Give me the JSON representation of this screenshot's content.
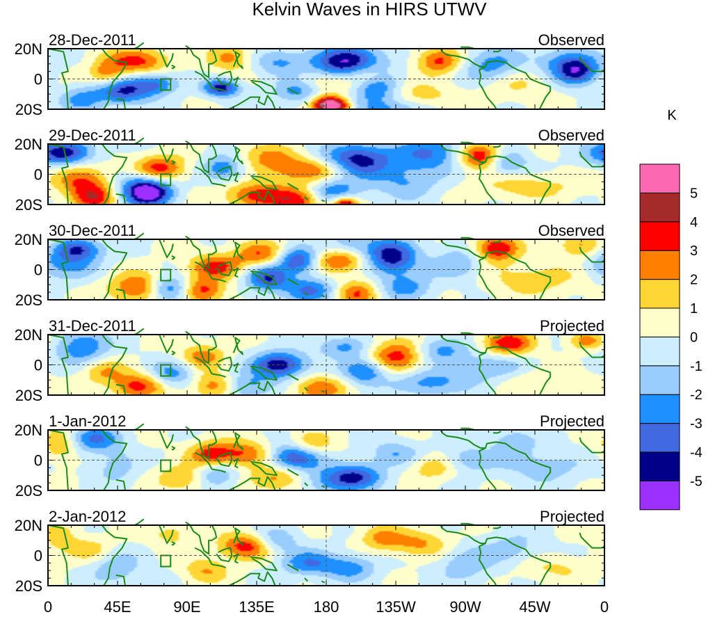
{
  "chart_data": {
    "type": "heatmap",
    "title": "Kelvin Waves in HIRS UTWV",
    "colorbar": {
      "unit": "K",
      "levels": [
        {
          "label": "",
          "color": "#9b30ff"
        },
        {
          "label": "-5",
          "color": "#00008b"
        },
        {
          "label": "-4",
          "color": "#4169e1"
        },
        {
          "label": "-3",
          "color": "#1e90ff"
        },
        {
          "label": "-2",
          "color": "#99ccff"
        },
        {
          "label": "-1",
          "color": "#cdeeff"
        },
        {
          "label": "0",
          "color": "#ffffcc"
        },
        {
          "label": "1",
          "color": "#ffd633"
        },
        {
          "label": "2",
          "color": "#ff7f00"
        },
        {
          "label": "3",
          "color": "#ff0000"
        },
        {
          "label": "4",
          "color": "#a52a2a"
        },
        {
          "label": "5",
          "color": "#ff69b4"
        }
      ]
    },
    "x_ticks": [
      "0",
      "45E",
      "90E",
      "135E",
      "180",
      "135W",
      "90W",
      "45W",
      "0"
    ],
    "y_ticks": [
      "20N",
      "0",
      "20S"
    ],
    "panels": [
      {
        "date": "28-Dec-2011",
        "status": "Observed",
        "blobs": [
          [
            195,
            10,
            16,
            8,
            -5.6
          ],
          [
            112,
            -6,
            8,
            4,
            -4.6
          ],
          [
            163,
            -7,
            12,
            6,
            -3.5
          ],
          [
            212,
            -6,
            10,
            6,
            -3
          ],
          [
            58,
            12,
            14,
            6,
            3.4
          ],
          [
            38,
            3,
            8,
            6,
            2.5
          ],
          [
            118,
            14,
            10,
            6,
            2.4
          ],
          [
            175,
            -3,
            16,
            6,
            2.5
          ],
          [
            205,
            3,
            10,
            6,
            3
          ],
          [
            253,
            12,
            10,
            6,
            3.4
          ],
          [
            48,
            -8,
            12,
            6,
            -4.2
          ],
          [
            70,
            -3,
            10,
            5,
            -3
          ],
          [
            180,
            -16,
            8,
            4,
            3.2
          ],
          [
            185,
            -18,
            8,
            4,
            5
          ],
          [
            218,
            -19,
            20,
            6,
            -2.5
          ],
          [
            288,
            8,
            14,
            8,
            -2.8
          ],
          [
            336,
            12,
            14,
            6,
            -2.5
          ],
          [
            342,
            4,
            10,
            6,
            -4
          ],
          [
            300,
            -2,
            15,
            8,
            1.5
          ],
          [
            150,
            11,
            12,
            6,
            -2.2
          ],
          [
            240,
            -12,
            15,
            6,
            2
          ],
          [
            22,
            -14,
            10,
            6,
            -2.2
          ]
        ]
      },
      {
        "date": "29-Dec-2011",
        "status": "Observed",
        "blobs": [
          [
            200,
            8,
            16,
            8,
            -5.6
          ],
          [
            174,
            3,
            25,
            6,
            3.3
          ],
          [
            72,
            4,
            12,
            6,
            3.6
          ],
          [
            68,
            -12,
            10,
            6,
            -4.5
          ],
          [
            58,
            -10,
            10,
            8,
            -3
          ],
          [
            114,
            4,
            10,
            6,
            -3
          ],
          [
            135,
            -14,
            15,
            6,
            3.3
          ],
          [
            163,
            -17,
            12,
            6,
            3.3
          ],
          [
            185,
            -12,
            12,
            6,
            -3
          ],
          [
            192,
            -20,
            6,
            4,
            5
          ],
          [
            248,
            14,
            16,
            8,
            -3
          ],
          [
            280,
            12,
            10,
            6,
            4.5
          ],
          [
            296,
            8,
            10,
            6,
            -2.5
          ],
          [
            10,
            14,
            14,
            6,
            -4.5
          ],
          [
            22,
            -4,
            12,
            8,
            3
          ],
          [
            30,
            -16,
            10,
            6,
            3
          ],
          [
            310,
            -8,
            25,
            6,
            1.5
          ],
          [
            142,
            12,
            14,
            6,
            1.8
          ],
          [
            232,
            -5,
            15,
            8,
            -2
          ]
        ]
      },
      {
        "date": "30-Dec-2011",
        "status": "Observed",
        "blobs": [
          [
            188,
            6,
            14,
            6,
            3.5
          ],
          [
            222,
            8,
            12,
            8,
            -4.8
          ],
          [
            162,
            6,
            10,
            6,
            -4.6
          ],
          [
            142,
            -6,
            10,
            6,
            -4
          ],
          [
            170,
            -14,
            12,
            6,
            -3
          ],
          [
            60,
            -12,
            14,
            7,
            3.6
          ],
          [
            78,
            -13,
            10,
            6,
            -4.2
          ],
          [
            100,
            -14,
            10,
            6,
            3.5
          ],
          [
            108,
            2,
            12,
            6,
            3.2
          ],
          [
            138,
            10,
            12,
            6,
            3
          ],
          [
            200,
            -16,
            10,
            6,
            3
          ],
          [
            232,
            -12,
            12,
            6,
            -2.3
          ],
          [
            290,
            14,
            10,
            6,
            4.2
          ],
          [
            10,
            4,
            16,
            8,
            -2.5
          ],
          [
            20,
            14,
            10,
            5,
            -3.5
          ],
          [
            266,
            4,
            12,
            8,
            -2
          ],
          [
            315,
            -6,
            25,
            8,
            1.5
          ],
          [
            345,
            16,
            10,
            6,
            2.5
          ],
          [
            195,
            16,
            12,
            6,
            -2
          ]
        ]
      },
      {
        "date": "31-Dec-2011",
        "status": "Projected",
        "blobs": [
          [
            226,
            6,
            14,
            8,
            3.6
          ],
          [
            150,
            0,
            12,
            6,
            -4.8
          ],
          [
            205,
            -4,
            10,
            6,
            -3.5
          ],
          [
            175,
            -16,
            12,
            6,
            2.8
          ],
          [
            128,
            -14,
            12,
            6,
            -2.5
          ],
          [
            108,
            -14,
            10,
            6,
            3
          ],
          [
            58,
            -14,
            12,
            6,
            3.4
          ],
          [
            100,
            6,
            10,
            6,
            2.5
          ],
          [
            80,
            -6,
            10,
            6,
            -2.5
          ],
          [
            22,
            12,
            12,
            8,
            -3
          ],
          [
            298,
            14,
            12,
            6,
            3.8
          ],
          [
            252,
            10,
            12,
            6,
            -2.5
          ],
          [
            348,
            16,
            8,
            4,
            2.5
          ],
          [
            285,
            -2,
            20,
            8,
            -2
          ],
          [
            315,
            -10,
            20,
            6,
            1.3
          ],
          [
            192,
            12,
            12,
            5,
            -2.5
          ],
          [
            245,
            -12,
            15,
            6,
            -2.5
          ],
          [
            36,
            -4,
            10,
            6,
            2
          ]
        ]
      },
      {
        "date": "1-Jan-2012",
        "status": "Projected",
        "blobs": [
          [
            160,
            2,
            12,
            6,
            -4.5
          ],
          [
            105,
            4,
            10,
            6,
            3.2
          ],
          [
            148,
            -12,
            12,
            6,
            2.5
          ],
          [
            88,
            -12,
            12,
            6,
            2.2
          ],
          [
            108,
            -10,
            10,
            6,
            -2.4
          ],
          [
            30,
            14,
            12,
            6,
            -3
          ],
          [
            8,
            10,
            8,
            8,
            2
          ],
          [
            44,
            -4,
            10,
            8,
            -1.5
          ],
          [
            185,
            -14,
            14,
            6,
            -2.5
          ],
          [
            200,
            -10,
            12,
            6,
            -3
          ],
          [
            225,
            4,
            12,
            6,
            -2
          ],
          [
            250,
            -4,
            12,
            6,
            2
          ],
          [
            270,
            0,
            12,
            6,
            -2
          ],
          [
            300,
            12,
            10,
            6,
            -1.8
          ],
          [
            320,
            -4,
            20,
            8,
            -1.5
          ],
          [
            128,
            4,
            12,
            6,
            3
          ],
          [
            170,
            10,
            10,
            6,
            2.2
          ]
        ]
      },
      {
        "date": "2-Jan-2012",
        "status": "Projected",
        "blobs": [
          [
            128,
            6,
            12,
            6,
            3.6
          ],
          [
            168,
            -5,
            12,
            6,
            -2.8
          ],
          [
            195,
            -8,
            12,
            6,
            -2.5
          ],
          [
            240,
            8,
            14,
            6,
            2.2
          ],
          [
            102,
            -10,
            10,
            6,
            2
          ],
          [
            80,
            14,
            10,
            6,
            1.5
          ],
          [
            44,
            -8,
            12,
            8,
            -1.8
          ],
          [
            28,
            4,
            10,
            6,
            1.6
          ],
          [
            8,
            12,
            8,
            8,
            1.5
          ],
          [
            270,
            -6,
            12,
            8,
            -1.8
          ],
          [
            300,
            4,
            14,
            8,
            -1.5
          ],
          [
            325,
            -8,
            18,
            6,
            1.2
          ],
          [
            148,
            10,
            10,
            6,
            -2
          ],
          [
            215,
            12,
            10,
            6,
            2
          ]
        ]
      }
    ]
  }
}
